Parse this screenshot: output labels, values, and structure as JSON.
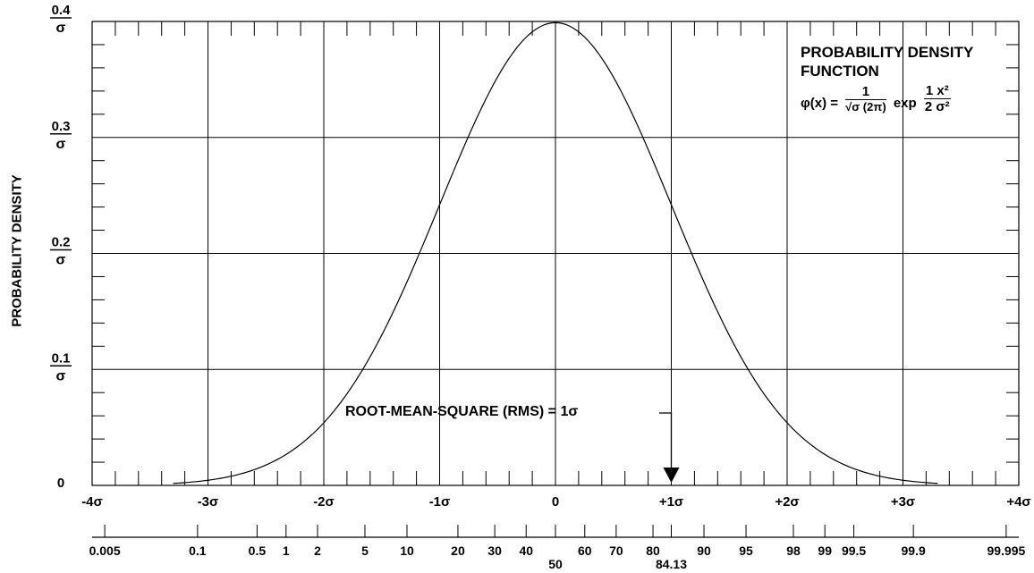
{
  "chart_data": {
    "type": "line",
    "title": "PROBABILITY DENSITY FUNCTION",
    "formula": {
      "lhs": "φ(x) =",
      "num": "1",
      "den": "√σ (2π)",
      "exp": "exp",
      "exp_num": "1 x²",
      "exp_den": "2 σ²"
    },
    "ylabel": "PROBABILITY DENSITY",
    "y_ticks": [
      {
        "value": 0.4,
        "num": "0.4",
        "den": "σ"
      },
      {
        "value": 0.3,
        "num": "0.3",
        "den": "σ"
      },
      {
        "value": 0.2,
        "num": "0.2",
        "den": "σ"
      },
      {
        "value": 0.1,
        "num": "0.1",
        "den": "σ"
      },
      {
        "value": 0,
        "num": "0",
        "den": ""
      }
    ],
    "ylim": [
      0,
      0.4
    ],
    "xlim": [
      -4,
      4
    ],
    "x_ticks": [
      {
        "value": -4,
        "label": "-4σ"
      },
      {
        "value": -3,
        "label": "-3σ"
      },
      {
        "value": -2,
        "label": "-2σ"
      },
      {
        "value": -1,
        "label": "-1σ"
      },
      {
        "value": 0,
        "label": "0"
      },
      {
        "value": 1,
        "label": "+1σ"
      },
      {
        "value": 2,
        "label": "+2σ"
      },
      {
        "value": 3,
        "label": "+3σ"
      },
      {
        "value": 4,
        "label": "+4σ"
      }
    ],
    "percentile_ticks": [
      {
        "label": "0.005",
        "z": -3.891,
        "low": false
      },
      {
        "label": "0.1",
        "z": -3.09,
        "low": false
      },
      {
        "label": "0.5",
        "z": -2.576,
        "low": false
      },
      {
        "label": "1",
        "z": -2.326,
        "low": false
      },
      {
        "label": "2",
        "z": -2.054,
        "low": false
      },
      {
        "label": "5",
        "z": -1.645,
        "low": false
      },
      {
        "label": "10",
        "z": -1.282,
        "low": false
      },
      {
        "label": "20",
        "z": -0.842,
        "low": false
      },
      {
        "label": "30",
        "z": -0.524,
        "low": false
      },
      {
        "label": "40",
        "z": -0.253,
        "low": false
      },
      {
        "label": "50",
        "z": 0,
        "low": true
      },
      {
        "label": "60",
        "z": 0.253,
        "low": false
      },
      {
        "label": "70",
        "z": 0.524,
        "low": false
      },
      {
        "label": "80",
        "z": 0.842,
        "low": false
      },
      {
        "label": "84.13",
        "z": 1.0,
        "low": true
      },
      {
        "label": "90",
        "z": 1.282,
        "low": false
      },
      {
        "label": "95",
        "z": 1.645,
        "low": false
      },
      {
        "label": "98",
        "z": 2.054,
        "low": false
      },
      {
        "label": "99",
        "z": 2.326,
        "low": false
      },
      {
        "label": "99.5",
        "z": 2.576,
        "low": false
      },
      {
        "label": "99.9",
        "z": 3.09,
        "low": false
      },
      {
        "label": "99.995",
        "z": 3.891,
        "low": false
      }
    ],
    "curve": {
      "mean": 0,
      "sd": 1,
      "x_range": [
        -3.3,
        3.3
      ]
    },
    "annotation": {
      "text": "ROOT-MEAN-SQUARE (RMS) = 1σ",
      "x": 1
    },
    "grid": true
  }
}
